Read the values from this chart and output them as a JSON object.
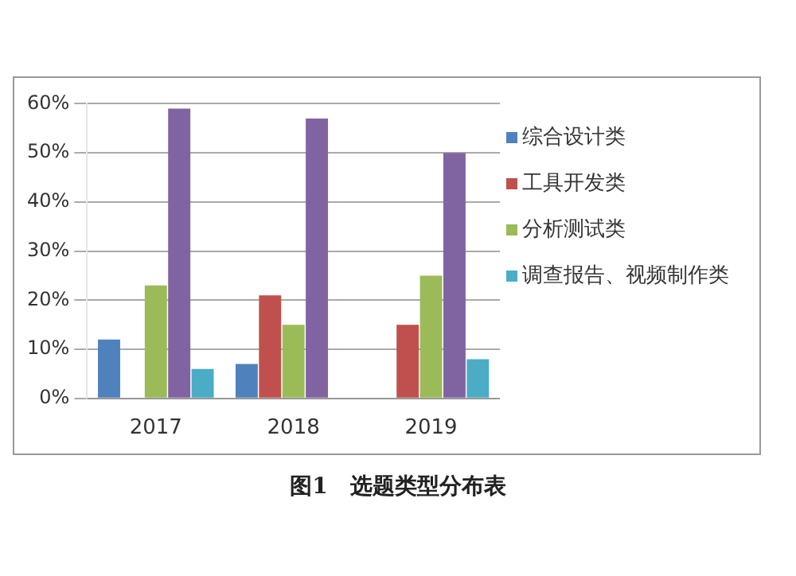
{
  "chart_data": {
    "type": "bar",
    "title": "图1　选题类型分布表",
    "categories": [
      "2017",
      "2018",
      "2019"
    ],
    "series": [
      {
        "name": "综合设计类",
        "color": "#4f81bd",
        "values": [
          12,
          7,
          0
        ]
      },
      {
        "name": "工具开发类",
        "color": "#c0504d",
        "values": [
          0,
          21,
          15
        ]
      },
      {
        "name": "分析测试类",
        "color": "#9bbb59",
        "values": [
          23,
          15,
          25
        ]
      },
      {
        "color": "#8064a2",
        "values": [
          59,
          57,
          50
        ]
      },
      {
        "name": "调查报告、视频制作类",
        "color": "#4bacc6",
        "values": [
          6,
          0,
          8
        ]
      }
    ],
    "ylim": [
      0,
      60
    ],
    "yticks": [
      {
        "value": 0,
        "label": "0%"
      },
      {
        "value": 10,
        "label": "10%"
      },
      {
        "value": 20,
        "label": "20%"
      },
      {
        "value": 30,
        "label": "30%"
      },
      {
        "value": 40,
        "label": "40%"
      },
      {
        "value": 50,
        "label": "50%"
      },
      {
        "value": 60,
        "label": "60%"
      }
    ],
    "grid": "y",
    "legend": "right"
  }
}
